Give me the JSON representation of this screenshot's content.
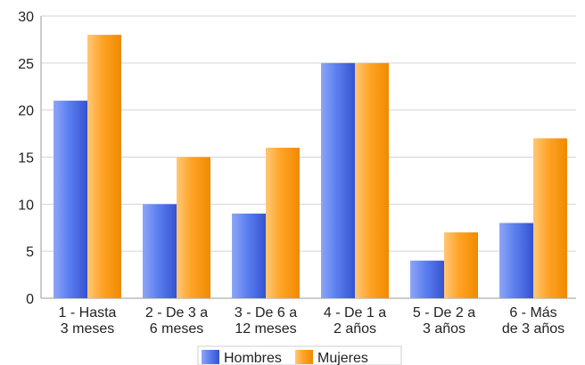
{
  "chart_data": {
    "type": "bar",
    "categories": [
      [
        "1 - Hasta",
        "3 meses"
      ],
      [
        "2 - De 3 a",
        "6 meses"
      ],
      [
        "3 - De 6 a",
        "12 meses"
      ],
      [
        "4 - De 1 a",
        "2 años"
      ],
      [
        "5 - De 2 a",
        "3 años"
      ],
      [
        "6 - Más",
        "de 3 años"
      ]
    ],
    "series": [
      {
        "name": "Hombres",
        "values": [
          21,
          10,
          9,
          25,
          4,
          8
        ],
        "color": "#4a6ee6"
      },
      {
        "name": "Mujeres",
        "values": [
          28,
          15,
          16,
          25,
          7,
          17
        ],
        "color": "#ff9a14"
      }
    ],
    "ylim": [
      0,
      30
    ],
    "yticks": [
      0,
      5,
      10,
      15,
      20,
      25,
      30
    ],
    "grid": true,
    "legend_position": "bottom"
  }
}
